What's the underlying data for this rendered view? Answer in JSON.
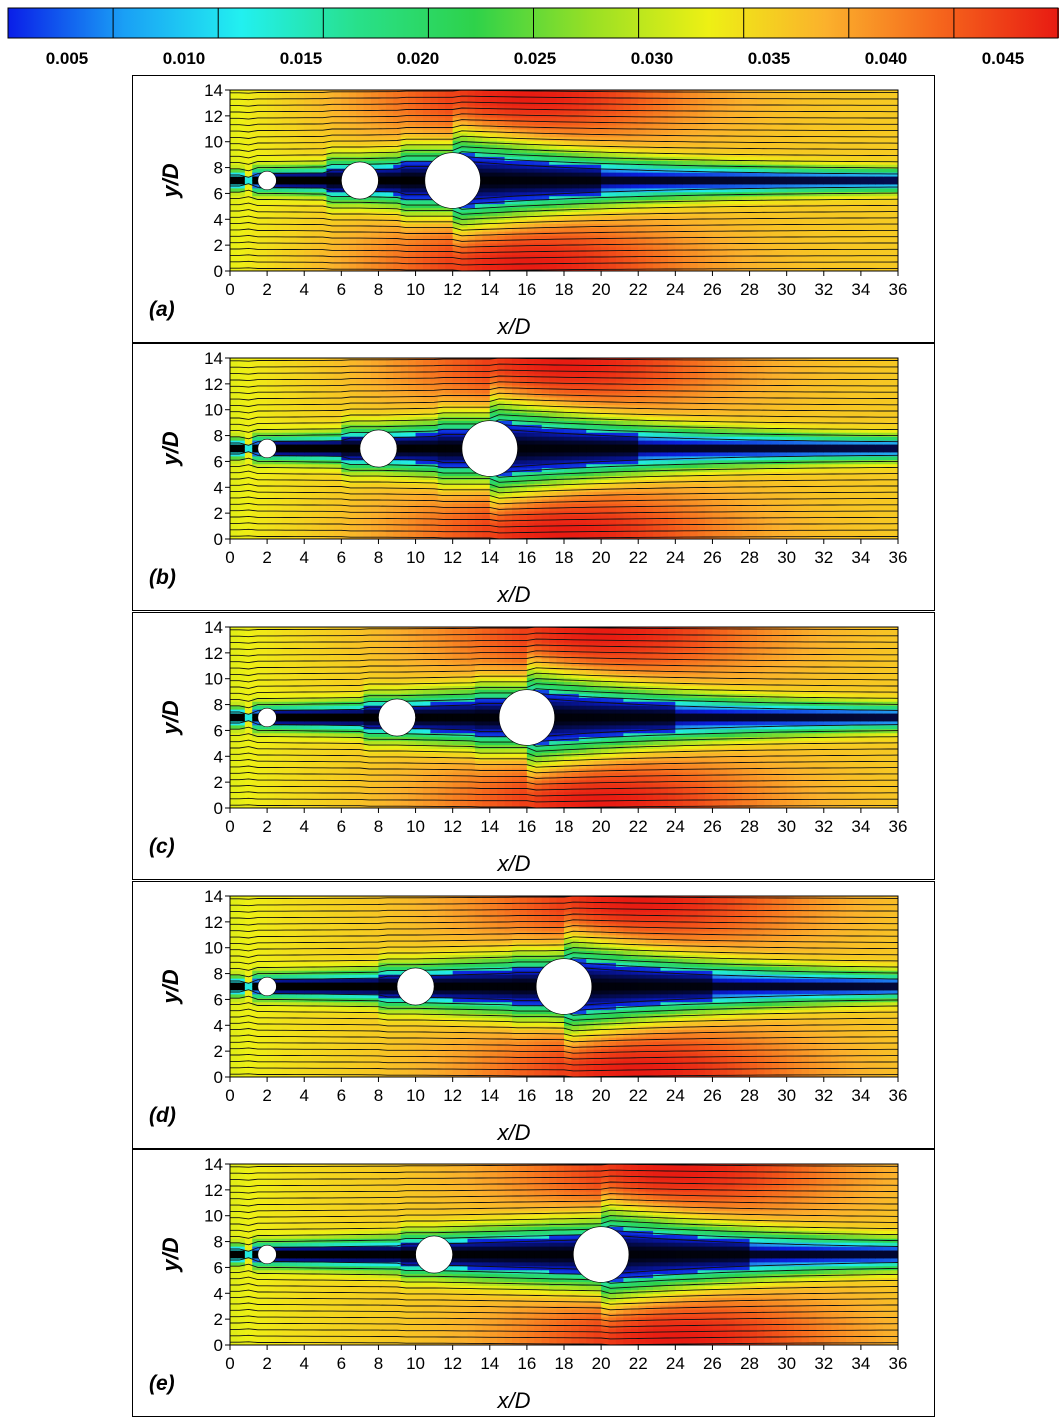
{
  "colorbar": {
    "ticks": [
      "0.005",
      "0.010",
      "0.015",
      "0.020",
      "0.025",
      "0.030",
      "0.035",
      "0.040",
      "0.045"
    ],
    "colors": [
      "#0a1ee8",
      "#1aa0f5",
      "#22f0f0",
      "#28e08a",
      "#2ed24a",
      "#9ae024",
      "#eef014",
      "#fbb12c",
      "#f5641c",
      "#e81a12"
    ]
  },
  "chart_data": [
    {
      "type": "heatmap",
      "panel_label": "(a)",
      "xlabel": "x/D",
      "ylabel": "y/D",
      "xlim": [
        0,
        36
      ],
      "ylim": [
        0,
        14
      ],
      "xticks": [
        "0",
        "2",
        "4",
        "6",
        "8",
        "10",
        "12",
        "14",
        "16",
        "18",
        "20",
        "22",
        "24",
        "26",
        "28",
        "30",
        "32",
        "34",
        "36"
      ],
      "yticks": [
        "0",
        "2",
        "4",
        "6",
        "8",
        "10",
        "12",
        "14"
      ],
      "cylinders": [
        {
          "x": 2,
          "y": 7,
          "d": 1
        },
        {
          "x": 7,
          "y": 7,
          "d": 2
        },
        {
          "x": 12,
          "y": 7,
          "d": 3
        }
      ]
    },
    {
      "type": "heatmap",
      "panel_label": "(b)",
      "xlabel": "x/D",
      "ylabel": "y/D",
      "xlim": [
        0,
        36
      ],
      "ylim": [
        0,
        14
      ],
      "xticks": [
        "0",
        "2",
        "4",
        "6",
        "8",
        "10",
        "12",
        "14",
        "16",
        "18",
        "20",
        "22",
        "24",
        "26",
        "28",
        "30",
        "32",
        "34",
        "36"
      ],
      "yticks": [
        "0",
        "2",
        "4",
        "6",
        "8",
        "10",
        "12",
        "14"
      ],
      "cylinders": [
        {
          "x": 2,
          "y": 7,
          "d": 1
        },
        {
          "x": 8,
          "y": 7,
          "d": 2
        },
        {
          "x": 14,
          "y": 7,
          "d": 3
        }
      ]
    },
    {
      "type": "heatmap",
      "panel_label": "(c)",
      "xlabel": "x/D",
      "ylabel": "y/D",
      "xlim": [
        0,
        36
      ],
      "ylim": [
        0,
        14
      ],
      "xticks": [
        "0",
        "2",
        "4",
        "6",
        "8",
        "10",
        "12",
        "14",
        "16",
        "18",
        "20",
        "22",
        "24",
        "26",
        "28",
        "30",
        "32",
        "34",
        "36"
      ],
      "yticks": [
        "0",
        "2",
        "4",
        "6",
        "8",
        "10",
        "12",
        "14"
      ],
      "cylinders": [
        {
          "x": 2,
          "y": 7,
          "d": 1
        },
        {
          "x": 9,
          "y": 7,
          "d": 2
        },
        {
          "x": 16,
          "y": 7,
          "d": 3
        }
      ]
    },
    {
      "type": "heatmap",
      "panel_label": "(d)",
      "xlabel": "x/D",
      "ylabel": "y/D",
      "xlim": [
        0,
        36
      ],
      "ylim": [
        0,
        14
      ],
      "xticks": [
        "0",
        "2",
        "4",
        "6",
        "8",
        "10",
        "12",
        "14",
        "16",
        "18",
        "20",
        "22",
        "24",
        "26",
        "28",
        "30",
        "32",
        "34",
        "36"
      ],
      "yticks": [
        "0",
        "2",
        "4",
        "6",
        "8",
        "10",
        "12",
        "14"
      ],
      "cylinders": [
        {
          "x": 2,
          "y": 7,
          "d": 1
        },
        {
          "x": 10,
          "y": 7,
          "d": 2
        },
        {
          "x": 18,
          "y": 7,
          "d": 3
        }
      ]
    },
    {
      "type": "heatmap",
      "panel_label": "(e)",
      "xlabel": "x/D",
      "ylabel": "y/D",
      "xlim": [
        0,
        36
      ],
      "ylim": [
        0,
        14
      ],
      "xticks": [
        "0",
        "2",
        "4",
        "6",
        "8",
        "10",
        "12",
        "14",
        "16",
        "18",
        "20",
        "22",
        "24",
        "26",
        "28",
        "30",
        "32",
        "34",
        "36"
      ],
      "yticks": [
        "0",
        "2",
        "4",
        "6",
        "8",
        "10",
        "12",
        "14"
      ],
      "cylinders": [
        {
          "x": 2,
          "y": 7,
          "d": 1
        },
        {
          "x": 11,
          "y": 7,
          "d": 2
        },
        {
          "x": 20,
          "y": 7,
          "d": 3
        }
      ]
    }
  ]
}
